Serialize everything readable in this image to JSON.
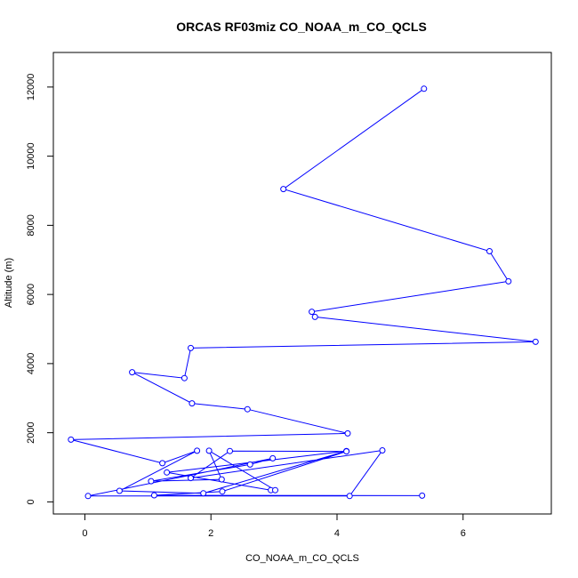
{
  "chart_data": {
    "type": "line",
    "title": "ORCAS RF03miz CO_NOAA_m_CO_QCLS",
    "xlabel": "CO_NOAA_m_CO_QCLS",
    "ylabel": "Altitude (m)",
    "xlim": [
      -0.5,
      7.4
    ],
    "ylim": [
      -350,
      13000
    ],
    "xticks": [
      0,
      2,
      4,
      6
    ],
    "yticks": [
      0,
      2000,
      4000,
      6000,
      8000,
      10000,
      12000
    ],
    "grid": false,
    "marker": "open-circle",
    "colors": {
      "series": "#0000ff",
      "axes": "#000000",
      "background": "#ffffff"
    },
    "series": [
      {
        "x": [
          5.38,
          3.15,
          6.42,
          6.72,
          3.6,
          3.65,
          7.15,
          1.68,
          1.58,
          0.75,
          1.7,
          2.58,
          4.17,
          -0.22,
          1.23,
          1.78,
          0.55,
          1.88,
          4.15,
          1.3,
          2.95,
          3.02,
          1.97,
          2.17,
          1.05,
          2.62,
          2.98,
          0.05,
          4.2,
          4.72,
          1.68,
          2.3,
          4.15,
          2.18,
          1.1,
          5.35
        ],
        "y": [
          11950,
          9050,
          7250,
          6380,
          5500,
          5350,
          4630,
          4450,
          3580,
          3750,
          2850,
          2680,
          1980,
          1800,
          1120,
          1480,
          320,
          250,
          1470,
          850,
          340,
          340,
          1480,
          650,
          600,
          1080,
          1260,
          170,
          170,
          1490,
          690,
          1470,
          1460,
          300,
          190,
          180
        ]
      }
    ]
  }
}
